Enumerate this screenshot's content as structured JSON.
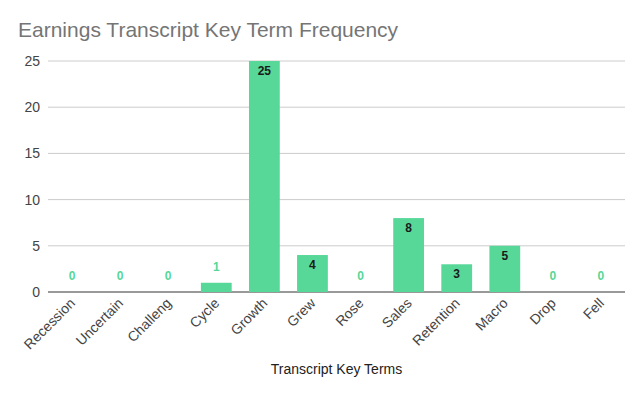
{
  "chart_data": {
    "type": "bar",
    "title": "Earnings Transcript Key Term Frequency",
    "x_label": "Transcript Key Terms",
    "categories": [
      "Recession",
      "Uncertain",
      "Challeng",
      "Cycle",
      "Growth",
      "Grew",
      "Rose",
      "Sales",
      "Retention",
      "Macro",
      "Drop",
      "Fell"
    ],
    "values": [
      0,
      0,
      0,
      1,
      25,
      4,
      0,
      8,
      3,
      5,
      0,
      0
    ],
    "color": "#57d798",
    "ylim": [
      0,
      25
    ],
    "yticks": [
      0,
      5,
      10,
      15,
      20,
      25
    ],
    "grid": true,
    "data_labels": true
  }
}
